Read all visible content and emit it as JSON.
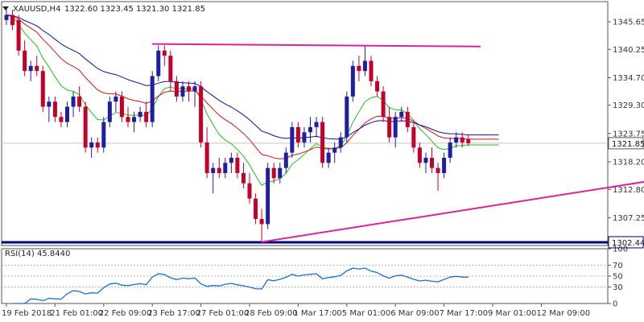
{
  "header": {
    "symbol": "XAUUSD,H4",
    "ohlc": "1322.60 1323.45 1321.30 1321.85"
  },
  "rsi_header": "RSI(14) 45.8440",
  "colors": {
    "bull": "#1f1fa0",
    "bear": "#c4002a",
    "ma_fast": "#1ec21e",
    "ma_mid": "#d41414",
    "ma_slow": "#1010a0",
    "trend": "#e0209a",
    "support": "#000080",
    "rsi": "#1c6fd1"
  },
  "chart_data": [
    {
      "type": "candlestick",
      "title": "",
      "ylim": [
        1301.8,
        1349.6
      ],
      "y_ticks": [
        "1345.65",
        "1340.25",
        "1334.70",
        "1329.30",
        "1323.75",
        "1318.20",
        "1312.80",
        "1307.25"
      ],
      "y_tick_values": [
        1345.65,
        1340.25,
        1334.7,
        1329.3,
        1323.75,
        1318.2,
        1312.8,
        1307.25
      ],
      "x_labels": [
        "19 Feb 2018",
        "21 Feb 01:00",
        "22 Feb 09:00",
        "23 Feb 17:00",
        "27 Feb 01:00",
        "28 Feb 09:00",
        "1 Mar 17:00",
        "5 Mar 01:00",
        "6 Mar 09:00",
        "7 Mar 17:00",
        "9 Mar 01:00",
        "12 Mar 09:00"
      ],
      "x_label_bars": [
        0,
        8,
        16,
        24,
        32,
        40,
        48,
        56,
        64,
        72,
        80,
        88
      ],
      "current_price": 1321.85,
      "current_price_label": "1321.85",
      "support_level": 1302.44,
      "support_label": "1302.44",
      "ohlc": [
        [
          1346,
          1348.5,
          1345,
          1347
        ],
        [
          1347,
          1348,
          1344,
          1345
        ],
        [
          1346,
          1347,
          1339,
          1340
        ],
        [
          1340,
          1342,
          1335,
          1336
        ],
        [
          1336,
          1338,
          1334,
          1337
        ],
        [
          1337,
          1339,
          1335,
          1336
        ],
        [
          1336,
          1337,
          1328,
          1329
        ],
        [
          1329,
          1331,
          1326,
          1330
        ],
        [
          1330,
          1331,
          1326,
          1327
        ],
        [
          1327,
          1328,
          1325,
          1326
        ],
        [
          1326,
          1330,
          1325,
          1329
        ],
        [
          1329,
          1332,
          1327,
          1331
        ],
        [
          1331,
          1333,
          1328,
          1329
        ],
        [
          1329,
          1330,
          1320,
          1321
        ],
        [
          1321,
          1323,
          1319,
          1322
        ],
        [
          1322,
          1323,
          1320,
          1321
        ],
        [
          1321,
          1327,
          1320,
          1326
        ],
        [
          1326,
          1331,
          1325,
          1330
        ],
        [
          1330,
          1332,
          1328,
          1331
        ],
        [
          1331,
          1332,
          1326,
          1327
        ],
        [
          1327,
          1329,
          1325,
          1326
        ],
        [
          1326,
          1328,
          1324,
          1327
        ],
        [
          1327,
          1329,
          1326,
          1328
        ],
        [
          1328,
          1330,
          1325,
          1326
        ],
        [
          1326,
          1336,
          1325,
          1335
        ],
        [
          1335,
          1341,
          1334,
          1340
        ],
        [
          1340,
          1341,
          1337,
          1339
        ],
        [
          1339,
          1340,
          1332,
          1334
        ],
        [
          1334,
          1335,
          1330,
          1331
        ],
        [
          1331,
          1334,
          1330,
          1333
        ],
        [
          1333,
          1334,
          1330,
          1332
        ],
        [
          1332,
          1334,
          1329,
          1333
        ],
        [
          1333,
          1334,
          1321,
          1322
        ],
        [
          1322,
          1325,
          1315,
          1316
        ],
        [
          1316,
          1318,
          1312,
          1317
        ],
        [
          1317,
          1319,
          1315,
          1316
        ],
        [
          1316,
          1319,
          1315,
          1318
        ],
        [
          1318,
          1320,
          1316,
          1319
        ],
        [
          1319,
          1320,
          1315,
          1316
        ],
        [
          1316,
          1318,
          1313,
          1314
        ],
        [
          1314,
          1316,
          1310,
          1311
        ],
        [
          1311,
          1312,
          1306,
          1307
        ],
        [
          1307,
          1309,
          1302.4,
          1306
        ],
        [
          1306,
          1318,
          1305,
          1317
        ],
        [
          1317,
          1318,
          1314,
          1315
        ],
        [
          1315,
          1318,
          1314,
          1317
        ],
        [
          1317,
          1321,
          1316,
          1320
        ],
        [
          1320,
          1326,
          1319,
          1325
        ],
        [
          1325,
          1326,
          1321,
          1322
        ],
        [
          1322,
          1325,
          1321,
          1324
        ],
        [
          1324,
          1327,
          1322,
          1325
        ],
        [
          1325,
          1327,
          1323,
          1326
        ],
        [
          1326,
          1327,
          1317,
          1318
        ],
        [
          1318,
          1321,
          1317,
          1320
        ],
        [
          1320,
          1322,
          1318,
          1321
        ],
        [
          1321,
          1324,
          1320,
          1323
        ],
        [
          1323,
          1332,
          1322,
          1331
        ],
        [
          1331,
          1338,
          1330,
          1337
        ],
        [
          1337,
          1339,
          1334,
          1336
        ],
        [
          1336,
          1341,
          1335,
          1338
        ],
        [
          1338,
          1339,
          1333,
          1334
        ],
        [
          1334,
          1335,
          1331,
          1332
        ],
        [
          1332,
          1333,
          1326,
          1327
        ],
        [
          1327,
          1329,
          1322,
          1323
        ],
        [
          1323,
          1328,
          1321,
          1327
        ],
        [
          1327,
          1329,
          1326,
          1328
        ],
        [
          1328,
          1329,
          1324,
          1325
        ],
        [
          1325,
          1326,
          1320,
          1321
        ],
        [
          1321,
          1322,
          1317,
          1318
        ],
        [
          1318,
          1320,
          1316,
          1319
        ],
        [
          1319,
          1321,
          1316,
          1317
        ],
        [
          1317,
          1318,
          1312.5,
          1316
        ],
        [
          1316,
          1320,
          1315,
          1319
        ],
        [
          1319,
          1323,
          1318,
          1322
        ],
        [
          1322,
          1324,
          1321,
          1323
        ],
        [
          1323,
          1324,
          1321,
          1322
        ],
        [
          1322.6,
          1323.45,
          1321.3,
          1321.85
        ]
      ],
      "trendlines": [
        {
          "name": "resistance",
          "points": [
            [
              24,
              1341.3
            ],
            [
              78,
              1340.8
            ]
          ]
        },
        {
          "name": "rising-support",
          "points": [
            [
              42,
              1302.5
            ],
            [
              112,
              1315.6
            ]
          ]
        }
      ]
    },
    {
      "type": "line",
      "title": "RSI(14) 45.8440",
      "ylim": [
        0,
        100
      ],
      "y_ticks": [
        "100",
        "70",
        "50",
        "30",
        "0"
      ],
      "y_tick_values": [
        100,
        70,
        50,
        30,
        0
      ],
      "reference_levels": [
        70,
        50,
        30
      ]
    }
  ]
}
